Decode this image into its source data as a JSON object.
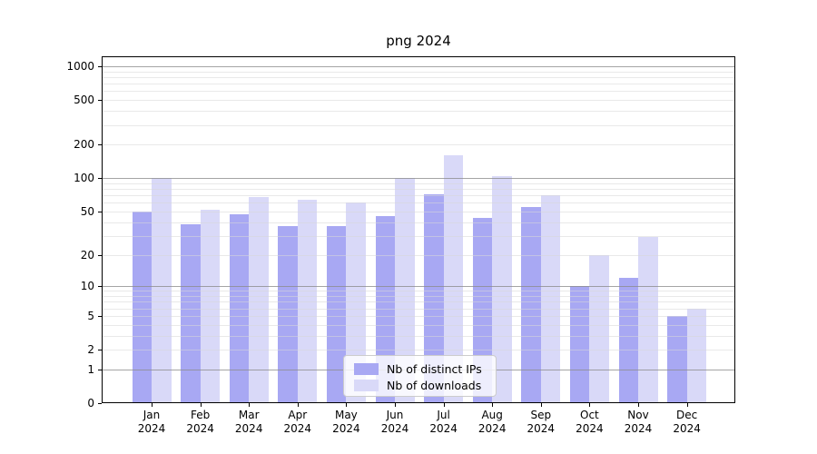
{
  "title": "png 2024",
  "chart_data": {
    "type": "bar",
    "title": "png 2024",
    "categories": [
      "Jan 2024",
      "Feb 2024",
      "Mar 2024",
      "Apr 2024",
      "May 2024",
      "Jun 2024",
      "Jul 2024",
      "Aug 2024",
      "Sep 2024",
      "Oct 2024",
      "Nov 2024",
      "Dec 2024"
    ],
    "series": [
      {
        "name": "Nb of distinct IPs",
        "color": "#a8a8f3",
        "values": [
          50,
          38,
          47,
          37,
          37,
          45,
          71,
          44,
          55,
          10,
          12,
          5
        ]
      },
      {
        "name": "Nb of downloads",
        "color": "#d9d9f8",
        "values": [
          100,
          52,
          68,
          64,
          60,
          100,
          160,
          105,
          70,
          20,
          29,
          6
        ]
      }
    ],
    "xlabel": "",
    "ylabel": "",
    "yscale": "log-like, position proportional to log10(value+1), zero shown at axis bottom",
    "ylim": [
      0,
      1220
    ],
    "y_ticks": [
      0,
      1,
      2,
      5,
      10,
      20,
      50,
      100,
      200,
      500,
      1000
    ],
    "y_major_gridlines": [
      1,
      10,
      100,
      1000
    ],
    "grid": true,
    "legend_position": "lower center inside plot"
  },
  "colors": {
    "bar_distinct_ips": "#a8a8f3",
    "bar_downloads": "#d9d9f8",
    "major_gridline": "#b0b0b0",
    "minor_gridline": "#e9e9e9",
    "axis": "#000000",
    "background": "#ffffff"
  }
}
